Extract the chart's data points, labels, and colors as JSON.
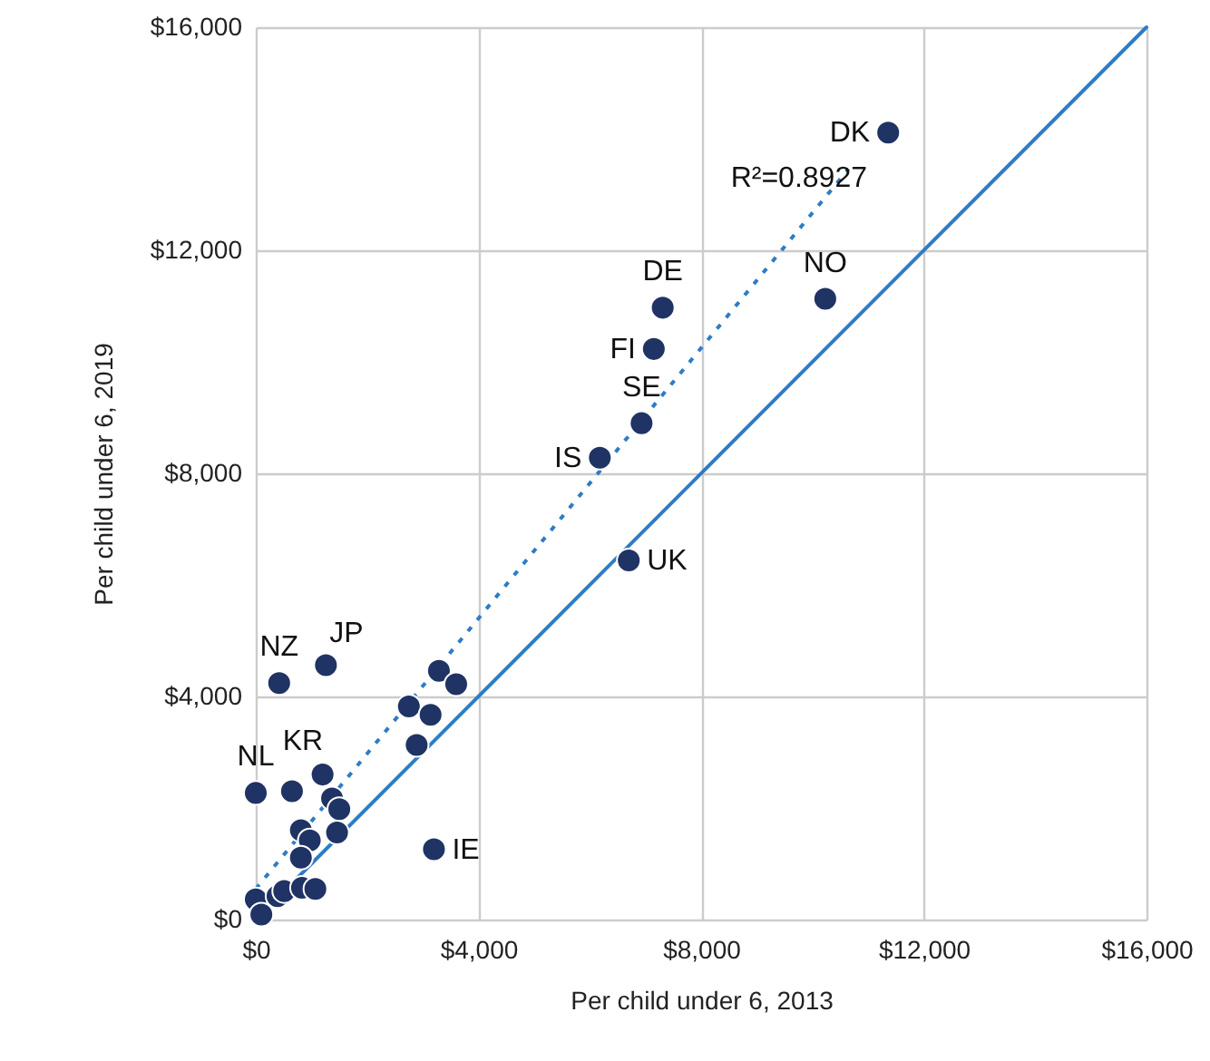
{
  "chart_data": {
    "type": "scatter",
    "xlabel": "Per child under 6, 2013",
    "ylabel": "Per child under 6, 2019",
    "xlim": [
      0,
      16000
    ],
    "ylim": [
      0,
      16000
    ],
    "xticks": [
      {
        "value": 0,
        "label": "$0"
      },
      {
        "value": 4000,
        "label": "$4,000"
      },
      {
        "value": 8000,
        "label": "$8,000"
      },
      {
        "value": 12000,
        "label": "$12,000"
      },
      {
        "value": 16000,
        "label": "$16,000"
      }
    ],
    "yticks": [
      {
        "value": 0,
        "label": "$0"
      },
      {
        "value": 4000,
        "label": "$4,000"
      },
      {
        "value": 8000,
        "label": "$8,000"
      },
      {
        "value": 12000,
        "label": "$12,000"
      },
      {
        "value": 16000,
        "label": "$16,000"
      }
    ],
    "grid": true,
    "series": [
      {
        "marker": "circle",
        "color": "#1f3364",
        "x": [
          11360,
          10230,
          7310,
          7150,
          6930,
          6180,
          6700,
          1260,
          420,
          0,
          650,
          3200,
          3290,
          3600,
          2750,
          3140,
          2890,
          1200,
          1370,
          1500,
          810,
          970,
          1460,
          810,
          0,
          100,
          390,
          510,
          830,
          1070
        ],
        "values": [
          14110,
          11130,
          10970,
          10230,
          8900,
          8280,
          6440,
          4560,
          4240,
          2270,
          2300,
          1260,
          4460,
          4220,
          3820,
          3670,
          3130,
          2600,
          2170,
          1980,
          1600,
          1420,
          1560,
          1110,
          360,
          90,
          420,
          510,
          570,
          550
        ],
        "value_labels": [
          "DK",
          "NO",
          "DE",
          "FI",
          "SE",
          "IS",
          "UK",
          "JP",
          "NZ",
          "NL",
          "KR",
          "IE",
          null,
          null,
          null,
          null,
          null,
          null,
          null,
          null,
          null,
          null,
          null,
          null,
          null,
          null,
          null,
          null,
          null,
          null
        ]
      },
      {
        "type": "line",
        "color": "#2e7cc4",
        "line_style": "dotted",
        "x": [
          0,
          10650
        ],
        "values": [
          550,
          13460
        ]
      },
      {
        "type": "line",
        "color": "#2e7cc4",
        "line_style": "solid",
        "x": [
          0,
          16000
        ],
        "values": [
          0,
          16000
        ]
      }
    ],
    "annotations": [
      "R²=0.8927"
    ]
  }
}
